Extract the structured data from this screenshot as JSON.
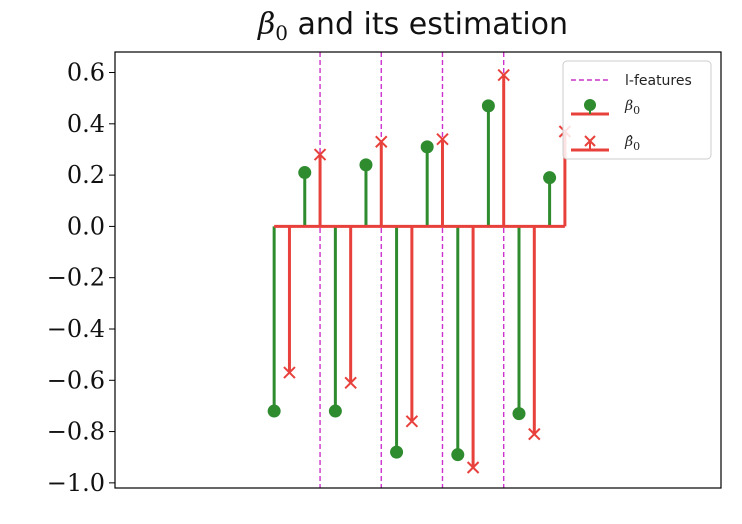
{
  "chart_data": {
    "type": "stem",
    "title_symbol": "β",
    "title_subscript": "0",
    "title_rest": " and its estimation",
    "xlabel": "",
    "ylabel": "",
    "xlim": [
      -5.2,
      14.6
    ],
    "ylim": [
      -1.02,
      0.68
    ],
    "yticks": [
      -1.0,
      -0.8,
      -0.6,
      -0.4,
      -0.2,
      0.0,
      0.2,
      0.4,
      0.6
    ],
    "ytick_labels": [
      "−1.0",
      "−0.8",
      "−0.6",
      "−0.4",
      "−0.2",
      "0.0",
      "0.2",
      "0.4",
      "0.6"
    ],
    "grid": false,
    "legend_position": "top-right",
    "vlines": {
      "name": "l-features",
      "color": "#cc33cc",
      "x": [
        1.5,
        3.5,
        5.5,
        7.5
      ]
    },
    "series": [
      {
        "name_symbol": "β",
        "name_subscript": "0",
        "marker": "circle",
        "color": "#2e8b2e",
        "x": [
          0,
          1,
          2,
          3,
          4,
          5,
          6,
          7,
          8,
          9
        ],
        "y": [
          -0.72,
          0.21,
          -0.72,
          0.24,
          -0.88,
          0.31,
          -0.89,
          0.47,
          -0.73,
          0.19
        ]
      },
      {
        "name_symbol": "β̂",
        "name_subscript": "0",
        "marker": "x",
        "color": "#e8413c",
        "x": [
          0.5,
          1.5,
          2.5,
          3.5,
          4.5,
          5.5,
          6.5,
          7.5,
          8.5,
          9.5
        ],
        "y": [
          -0.57,
          0.28,
          -0.61,
          0.33,
          -0.76,
          0.34,
          -0.94,
          0.59,
          -0.81,
          0.37
        ]
      }
    ]
  }
}
